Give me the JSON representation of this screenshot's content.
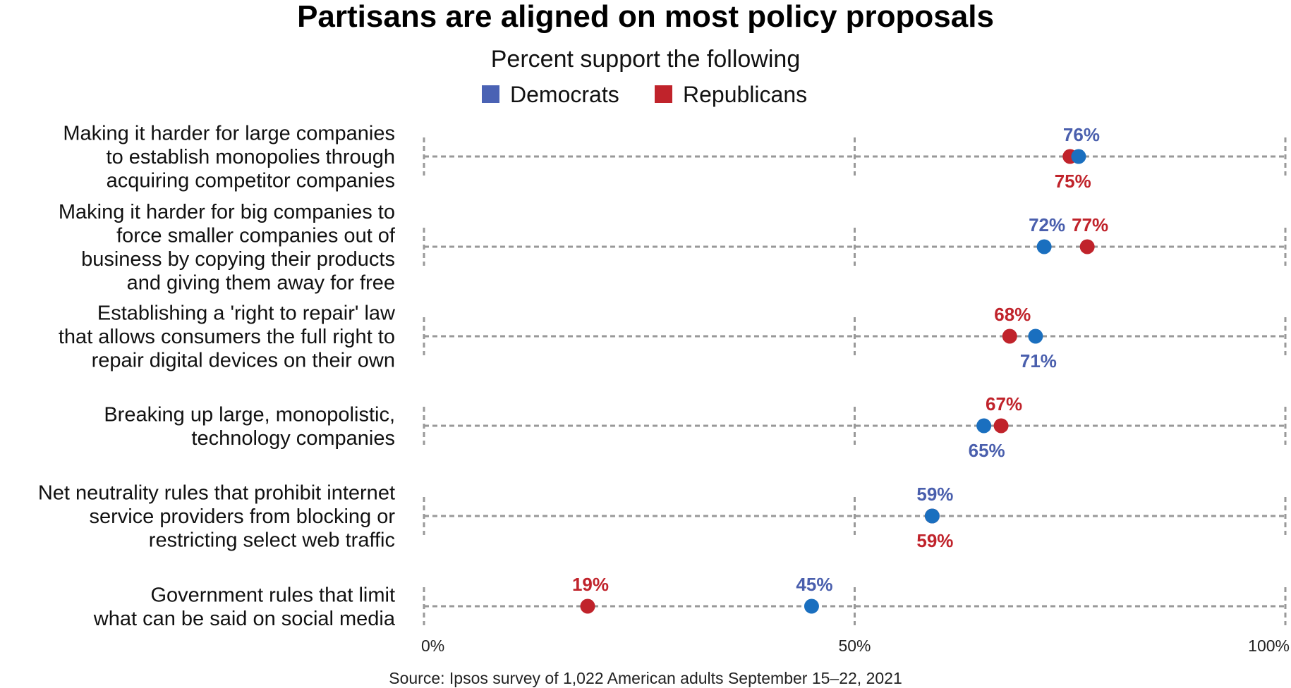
{
  "chart_data": {
    "type": "dot",
    "title": "Partisans are aligned on most policy proposals",
    "subtitle": "Percent support the following",
    "source": "Source: Ipsos survey of 1,022 American adults September 15–22, 2021",
    "xlim": [
      0,
      100
    ],
    "x_ticks": [
      {
        "value": 0,
        "label": "0%"
      },
      {
        "value": 50,
        "label": "50%"
      },
      {
        "value": 100,
        "label": "100%"
      }
    ],
    "grid": true,
    "legend_placement": "top",
    "categories": [
      [
        "Making it harder for large companies",
        "to establish monopolies through",
        "acquiring competitor companies"
      ],
      [
        "Making it harder for big companies to",
        "force smaller companies out of",
        "business by copying their products",
        "and giving them away for free"
      ],
      [
        "Establishing a 'right to repair' law",
        "that allows consumers the full right to",
        "repair digital devices on their own"
      ],
      [
        "Breaking up large, monopolistic,",
        "technology companies"
      ],
      [
        "Net neutrality rules that prohibit internet",
        "service providers from blocking or",
        "restricting select web traffic"
      ],
      [
        "Government rules that limit",
        "what can be said on social media"
      ]
    ],
    "series": [
      {
        "name": "Democrats",
        "color": "#1a6fbf",
        "label_color": "#4a5fad",
        "legend_color": "#4a62b4",
        "values": [
          76,
          72,
          71,
          65,
          59,
          45
        ],
        "labels": [
          "76%",
          "72%",
          "71%",
          "65%",
          "59%",
          "45%"
        ]
      },
      {
        "name": "Republicans",
        "color": "#c0232b",
        "label_color": "#c0232b",
        "legend_color": "#c0232b",
        "values": [
          75,
          77,
          68,
          67,
          59,
          19
        ],
        "labels": [
          "75%",
          "77%",
          "68%",
          "67%",
          "59%",
          "19%"
        ]
      }
    ]
  }
}
